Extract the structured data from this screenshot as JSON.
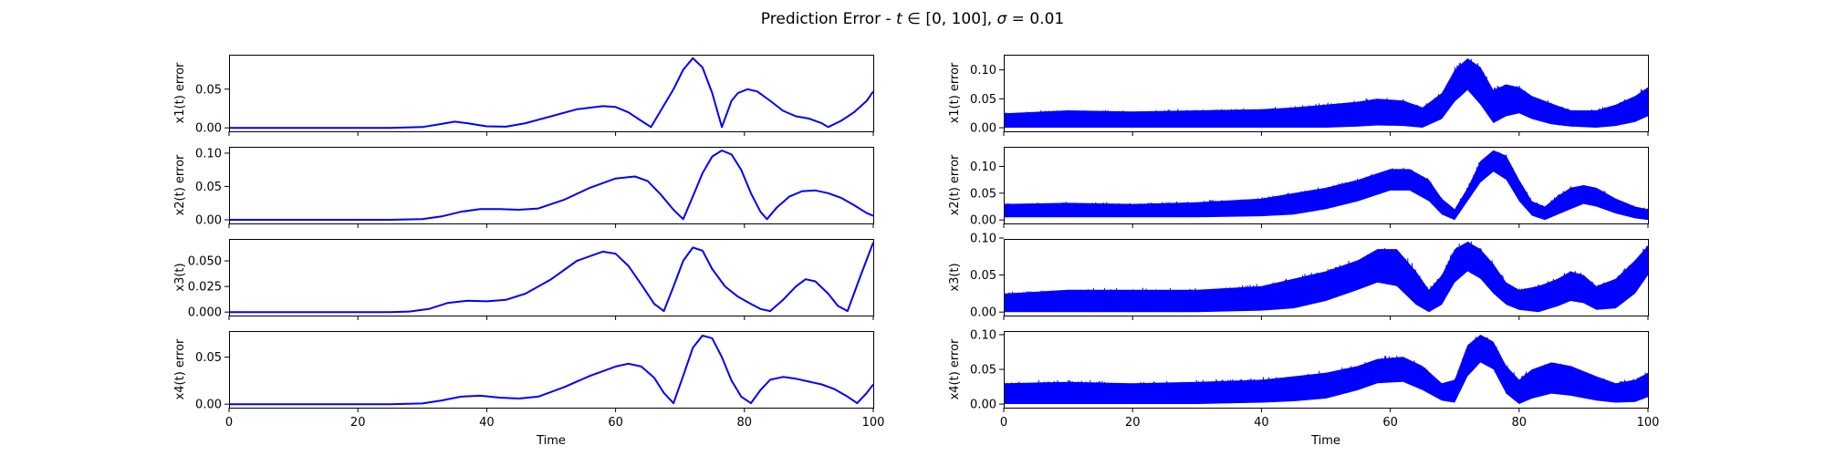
{
  "title": {
    "prefix": "Prediction Error - ",
    "var_t": "t",
    "in_sym": " ∈ ",
    "interval": "[0, 100]",
    "comma": ", ",
    "var_sigma": "σ",
    "eq": " = ",
    "sigma_value": "0.01"
  },
  "colors": {
    "series": "#0000ff",
    "frame": "#000000",
    "background": "#ffffff"
  },
  "chart_data": [
    {
      "type": "line",
      "column": "left",
      "row": 1,
      "ylabel": "x1(t) error",
      "xlabel": "",
      "xlim": [
        0,
        100
      ],
      "ylim": [
        -0.0045,
        0.0945
      ],
      "xticks": [
        0,
        20,
        40,
        60,
        80,
        100
      ],
      "xtick_labels_visible": false,
      "yticks": [
        0,
        0.05
      ],
      "ytick_labels": [
        "0.00",
        "0.05"
      ],
      "grid": false,
      "series": [
        {
          "x": [
            0,
            10,
            20,
            25,
            30,
            33,
            35,
            37,
            40,
            43,
            46,
            50,
            54,
            58,
            60,
            62,
            64,
            65.5,
            67,
            69,
            70.5,
            72,
            73.5,
            75,
            76.5,
            78,
            79,
            80.5,
            82,
            84,
            86,
            88,
            90,
            92,
            93,
            95,
            97,
            99,
            100
          ],
          "values": [
            0,
            0,
            0,
            0,
            0.001,
            0.005,
            0.008,
            0.006,
            0.002,
            0.0015,
            0.006,
            0.015,
            0.024,
            0.028,
            0.027,
            0.02,
            0.009,
            0.001,
            0.022,
            0.05,
            0.075,
            0.09,
            0.078,
            0.045,
            0.001,
            0.035,
            0.045,
            0.05,
            0.047,
            0.035,
            0.022,
            0.015,
            0.012,
            0.006,
            0.001,
            0.009,
            0.02,
            0.035,
            0.047
          ]
        }
      ]
    },
    {
      "type": "line",
      "column": "left",
      "row": 2,
      "ylabel": "x2(t) error",
      "xlabel": "",
      "xlim": [
        0,
        100
      ],
      "ylim": [
        -0.0055,
        0.1095
      ],
      "xticks": [
        0,
        20,
        40,
        60,
        80,
        100
      ],
      "xtick_labels_visible": false,
      "yticks": [
        0,
        0.05,
        0.1
      ],
      "ytick_labels": [
        "0.00",
        "0.05",
        "0.10"
      ],
      "grid": false,
      "series": [
        {
          "x": [
            0,
            10,
            20,
            25,
            30,
            33,
            36,
            39,
            42,
            45,
            48,
            52,
            56,
            60,
            63,
            65,
            67,
            69,
            70.5,
            72,
            73.5,
            75,
            76.5,
            78,
            79.5,
            81,
            82.5,
            83.5,
            85,
            87,
            89,
            91,
            93,
            95,
            97,
            99,
            100
          ],
          "values": [
            0,
            0,
            0,
            0,
            0.001,
            0.005,
            0.012,
            0.016,
            0.016,
            0.015,
            0.017,
            0.03,
            0.048,
            0.062,
            0.065,
            0.058,
            0.038,
            0.015,
            0.001,
            0.035,
            0.07,
            0.095,
            0.104,
            0.098,
            0.075,
            0.04,
            0.012,
            0.001,
            0.018,
            0.035,
            0.043,
            0.044,
            0.04,
            0.033,
            0.022,
            0.01,
            0.006
          ]
        }
      ]
    },
    {
      "type": "line",
      "column": "left",
      "row": 3,
      "ylabel": "x3(t)",
      "xlabel": "",
      "xlim": [
        0,
        100
      ],
      "ylim": [
        -0.0034,
        0.0714
      ],
      "xticks": [
        0,
        20,
        40,
        60,
        80,
        100
      ],
      "xtick_labels_visible": false,
      "yticks": [
        0,
        0.025,
        0.05
      ],
      "ytick_labels": [
        "0.000",
        "0.025",
        "0.050"
      ],
      "grid": false,
      "series": [
        {
          "x": [
            0,
            10,
            20,
            25,
            28,
            31,
            34,
            37,
            40,
            43,
            46,
            50,
            54,
            58,
            60,
            62,
            64,
            66,
            67.5,
            69,
            70.5,
            72,
            73.5,
            75,
            77,
            79,
            81,
            82.5,
            84,
            86,
            88,
            89.5,
            91,
            93,
            94.5,
            96,
            98,
            100
          ],
          "values": [
            0,
            0,
            0,
            0,
            0.0005,
            0.003,
            0.009,
            0.011,
            0.0105,
            0.012,
            0.018,
            0.032,
            0.05,
            0.059,
            0.057,
            0.045,
            0.027,
            0.008,
            0.001,
            0.025,
            0.05,
            0.063,
            0.06,
            0.042,
            0.025,
            0.015,
            0.008,
            0.003,
            0.001,
            0.012,
            0.025,
            0.032,
            0.03,
            0.018,
            0.006,
            0.001,
            0.035,
            0.068
          ]
        }
      ]
    },
    {
      "type": "line",
      "column": "left",
      "row": 4,
      "ylabel": "x4(t) error",
      "xlabel": "Time",
      "xlim": [
        0,
        100
      ],
      "ylim": [
        -0.0037,
        0.0777
      ],
      "xticks": [
        0,
        20,
        40,
        60,
        80,
        100
      ],
      "xtick_labels": [
        "0",
        "20",
        "40",
        "60",
        "80",
        "100"
      ],
      "yticks": [
        0,
        0.05
      ],
      "ytick_labels": [
        "0.00",
        "0.05"
      ],
      "grid": false,
      "series": [
        {
          "x": [
            0,
            10,
            20,
            25,
            30,
            33,
            36,
            39,
            42,
            45,
            48,
            52,
            56,
            60,
            62,
            64,
            66,
            67.5,
            69,
            70.5,
            72,
            73.5,
            75,
            76.5,
            78,
            79.5,
            81,
            82.5,
            84,
            86,
            88,
            90,
            92,
            94,
            96,
            97.5,
            99,
            100
          ],
          "values": [
            0,
            0,
            0,
            0,
            0.0008,
            0.004,
            0.008,
            0.009,
            0.007,
            0.006,
            0.008,
            0.018,
            0.03,
            0.04,
            0.043,
            0.04,
            0.028,
            0.012,
            0.001,
            0.03,
            0.06,
            0.073,
            0.07,
            0.05,
            0.025,
            0.008,
            0.001,
            0.015,
            0.026,
            0.029,
            0.027,
            0.024,
            0.021,
            0.016,
            0.008,
            0.001,
            0.012,
            0.021
          ]
        }
      ]
    },
    {
      "type": "area",
      "column": "right",
      "row": 1,
      "ylabel": "x1(t) error",
      "xlabel": "",
      "xlim": [
        0,
        100
      ],
      "ylim": [
        -0.00625,
        0.12625
      ],
      "xticks": [
        0,
        20,
        40,
        60,
        80,
        100
      ],
      "xtick_labels_visible": false,
      "yticks": [
        0,
        0.05,
        0.1
      ],
      "ytick_labels": [
        "0.00",
        "0.05",
        "0.10"
      ],
      "grid": false,
      "series": [
        {
          "x": [
            0,
            10,
            20,
            30,
            40,
            45,
            50,
            55,
            58,
            62,
            65,
            68,
            70,
            72,
            74,
            76,
            78,
            80,
            82,
            85,
            88,
            92,
            95,
            98,
            100
          ],
          "lower": [
            0,
            0,
            0,
            0,
            0,
            0,
            0,
            0.002,
            0.004,
            0.003,
            0,
            0.015,
            0.045,
            0.065,
            0.04,
            0.008,
            0.02,
            0.025,
            0.015,
            0.006,
            0.002,
            0,
            0.003,
            0.01,
            0.02
          ],
          "upper": [
            0.025,
            0.03,
            0.028,
            0.03,
            0.032,
            0.035,
            0.04,
            0.045,
            0.05,
            0.047,
            0.035,
            0.06,
            0.1,
            0.12,
            0.105,
            0.065,
            0.075,
            0.07,
            0.055,
            0.042,
            0.03,
            0.03,
            0.04,
            0.055,
            0.07
          ]
        }
      ]
    },
    {
      "type": "area",
      "column": "right",
      "row": 2,
      "ylabel": "x2(t) error",
      "xlabel": "",
      "xlim": [
        0,
        100
      ],
      "ylim": [
        -0.0065,
        0.1365
      ],
      "xticks": [
        0,
        20,
        40,
        60,
        80,
        100
      ],
      "xtick_labels_visible": false,
      "yticks": [
        0,
        0.05,
        0.1
      ],
      "ytick_labels": [
        "0.00",
        "0.05",
        "0.10"
      ],
      "grid": false,
      "series": [
        {
          "x": [
            0,
            10,
            20,
            30,
            40,
            45,
            50,
            55,
            60,
            63,
            66,
            68,
            70,
            72,
            74,
            76,
            78,
            80,
            82,
            84,
            86,
            88,
            90,
            92,
            95,
            98,
            100
          ],
          "lower": [
            0.005,
            0.005,
            0.005,
            0.005,
            0.007,
            0.01,
            0.02,
            0.035,
            0.055,
            0.055,
            0.035,
            0.01,
            0,
            0.035,
            0.07,
            0.09,
            0.075,
            0.035,
            0.008,
            0,
            0.01,
            0.02,
            0.03,
            0.025,
            0.012,
            0.003,
            0
          ],
          "upper": [
            0.03,
            0.032,
            0.03,
            0.033,
            0.04,
            0.05,
            0.06,
            0.075,
            0.095,
            0.095,
            0.075,
            0.04,
            0.02,
            0.06,
            0.11,
            0.13,
            0.12,
            0.075,
            0.035,
            0.025,
            0.045,
            0.06,
            0.065,
            0.06,
            0.04,
            0.025,
            0.02
          ]
        }
      ]
    },
    {
      "type": "area",
      "column": "right",
      "row": 3,
      "ylabel": "x3(t)",
      "xlabel": "",
      "xlim": [
        0,
        100
      ],
      "ylim": [
        -0.0047,
        0.0987
      ],
      "xticks": [
        0,
        20,
        40,
        60,
        80,
        100
      ],
      "xtick_labels_visible": false,
      "yticks": [
        0,
        0.05,
        0.1
      ],
      "ytick_labels": [
        "0.00",
        "0.05",
        "0.10"
      ],
      "grid": false,
      "series": [
        {
          "x": [
            0,
            10,
            20,
            30,
            40,
            45,
            50,
            55,
            58,
            61,
            64,
            66,
            68,
            70,
            72,
            74,
            76,
            78,
            80,
            83,
            86,
            88,
            90,
            92,
            95,
            98,
            100
          ],
          "lower": [
            0,
            0,
            0,
            0,
            0.002,
            0.005,
            0.015,
            0.03,
            0.04,
            0.035,
            0.01,
            0,
            0.01,
            0.04,
            0.055,
            0.045,
            0.025,
            0.01,
            0.003,
            0,
            0.008,
            0.015,
            0.012,
            0.003,
            0.005,
            0.025,
            0.05
          ],
          "upper": [
            0.025,
            0.03,
            0.03,
            0.03,
            0.035,
            0.045,
            0.055,
            0.07,
            0.085,
            0.085,
            0.055,
            0.03,
            0.05,
            0.085,
            0.095,
            0.085,
            0.065,
            0.04,
            0.03,
            0.035,
            0.045,
            0.055,
            0.05,
            0.035,
            0.045,
            0.07,
            0.09
          ]
        }
      ]
    },
    {
      "type": "area",
      "column": "right",
      "row": 4,
      "ylabel": "x4(t) error",
      "xlabel": "Time",
      "xlim": [
        0,
        100
      ],
      "ylim": [
        -0.0052,
        0.1052
      ],
      "xticks": [
        0,
        20,
        40,
        60,
        80,
        100
      ],
      "xtick_labels": [
        "0",
        "20",
        "40",
        "60",
        "80",
        "100"
      ],
      "yticks": [
        0,
        0.05,
        0.1
      ],
      "ytick_labels": [
        "0.00",
        "0.05",
        "0.10"
      ],
      "grid": false,
      "series": [
        {
          "x": [
            0,
            10,
            20,
            30,
            40,
            45,
            50,
            55,
            58,
            62,
            65,
            68,
            70,
            72,
            74,
            76,
            78,
            80,
            82,
            85,
            88,
            92,
            95,
            98,
            100
          ],
          "lower": [
            0,
            0,
            0,
            0,
            0.002,
            0.004,
            0.008,
            0.02,
            0.03,
            0.032,
            0.02,
            0.005,
            0.002,
            0.04,
            0.06,
            0.05,
            0.015,
            0,
            0.008,
            0.015,
            0.012,
            0.005,
            0.002,
            0.003,
            0.01
          ],
          "upper": [
            0.03,
            0.032,
            0.03,
            0.032,
            0.035,
            0.04,
            0.045,
            0.055,
            0.065,
            0.068,
            0.055,
            0.03,
            0.035,
            0.085,
            0.1,
            0.09,
            0.055,
            0.035,
            0.05,
            0.06,
            0.055,
            0.04,
            0.03,
            0.035,
            0.045
          ]
        }
      ]
    }
  ]
}
